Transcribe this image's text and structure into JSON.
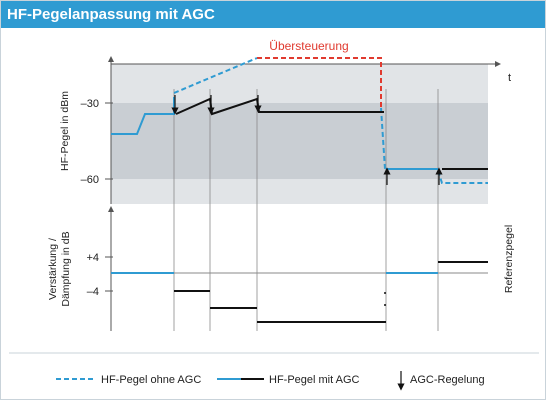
{
  "title": "HF-Pegelanpassung mit AGC",
  "diagram": {
    "overdrive_label": "Übersteuerung",
    "time_axis_label": "t",
    "level_axis_label": "HF-Pegel in dBm",
    "gain_axis_label_line1": "Verstärkung /",
    "gain_axis_label_line2": "Dämpfung in dB",
    "reference_label": "Referenzpegel",
    "level_ticks": [
      "–30",
      "–60"
    ],
    "gain_ticks": [
      "+4",
      "–4"
    ]
  },
  "legend": {
    "without_agc": "HF-Pegel ohne AGC",
    "with_agc": "HF-Pegel mit AGC",
    "agc_control": "AGC-Regelung"
  },
  "colors": {
    "accent_blue": "#2f9bd2",
    "overdrive_red": "#e03a2f",
    "band_light": "#e1e4e7",
    "band_dark": "#c9ced3"
  }
}
